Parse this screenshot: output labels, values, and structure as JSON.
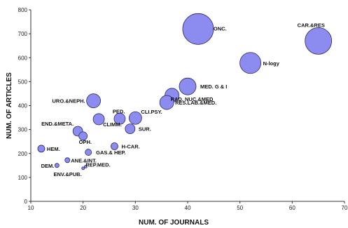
{
  "chart_data": {
    "type": "scatter",
    "subtype": "bubble",
    "xlabel": "NUM. OF JOURNALS",
    "ylabel": "NUM. OF ARTICLES",
    "xlim": [
      10,
      70
    ],
    "ylim": [
      0,
      800
    ],
    "xticks": [
      "10",
      "20",
      "30",
      "40",
      "50",
      "60",
      "70"
    ],
    "yticks": [
      "0",
      "100",
      "200",
      "300",
      "400",
      "500",
      "600",
      "700",
      "800"
    ],
    "grid": false,
    "legend": "none",
    "colors": {
      "bubble_fill": "#8c8cf0",
      "bubble_stroke": "#2a2a66"
    },
    "points": [
      {
        "label": "CAR.&RES",
        "x": 65,
        "y": 670,
        "size": 19
      },
      {
        "label": "ONC.",
        "x": 42,
        "y": 720,
        "size": 22
      },
      {
        "label": "N-logy",
        "x": 52,
        "y": 578,
        "size": 15
      },
      {
        "label": "MED. G & I",
        "x": 40,
        "y": 480,
        "size": 12
      },
      {
        "label": "RAD. NUC.&MED",
        "x": 37,
        "y": 443,
        "size": 10
      },
      {
        "label": "RES.LAB.&MED.",
        "x": 36,
        "y": 413,
        "size": 10
      },
      {
        "label": "URO.&NEPH.",
        "x": 22,
        "y": 420,
        "size": 10
      },
      {
        "label": "CLI.PSY.",
        "x": 30,
        "y": 348,
        "size": 9
      },
      {
        "label": "PED.",
        "x": 27,
        "y": 345,
        "size": 8
      },
      {
        "label": "CLIMM.",
        "x": 23,
        "y": 343,
        "size": 8
      },
      {
        "label": "SUR.",
        "x": 29,
        "y": 303,
        "size": 7
      },
      {
        "label": "END.&META.",
        "x": 19,
        "y": 293,
        "size": 7
      },
      {
        "label": "OPH.",
        "x": 20,
        "y": 273,
        "size": 6
      },
      {
        "label": "H-CAR.",
        "x": 26,
        "y": 230,
        "size": 5
      },
      {
        "label": "HEM.",
        "x": 12,
        "y": 220,
        "size": 5
      },
      {
        "label": "GAS.& HEP.",
        "x": 21,
        "y": 205,
        "size": 4.5
      },
      {
        "label": "ANE.&INT.",
        "x": 17,
        "y": 172,
        "size": 3.5
      },
      {
        "label": "REP.MED.",
        "x": 20.5,
        "y": 145,
        "size": 2
      },
      {
        "label": "DEM.",
        "x": 15,
        "y": 150,
        "size": 3
      },
      {
        "label": "ENV.&PUB.",
        "x": 20,
        "y": 138,
        "size": 2
      }
    ]
  }
}
